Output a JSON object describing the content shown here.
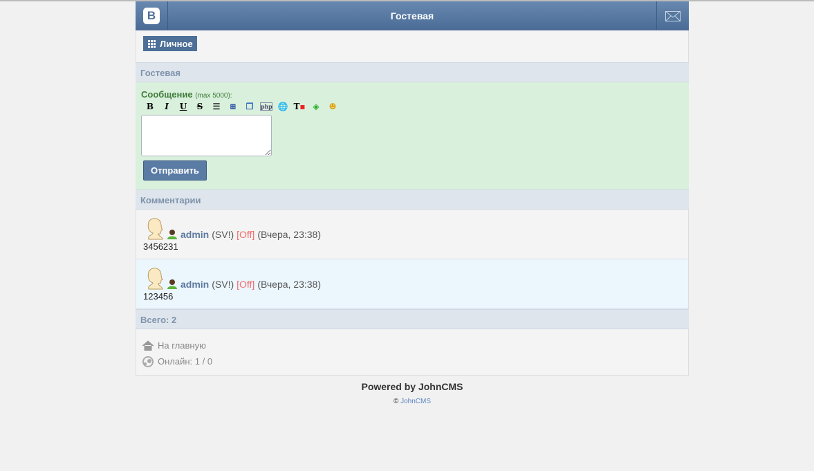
{
  "header": {
    "logo": "B",
    "title": "Гостевая"
  },
  "menu": {
    "personal": "Личное"
  },
  "guestbook": {
    "title": "Гостевая",
    "message_label": "Сообщение",
    "max_hint": "(max 5000):",
    "textarea_value": "",
    "submit": "Отправить",
    "toolbar": [
      "bold",
      "italic",
      "underline",
      "strike",
      "list",
      "spoiler",
      "copy",
      "php",
      "link",
      "text-color",
      "bg-color",
      "smileys"
    ]
  },
  "comments": {
    "title": "Комментарии",
    "items": [
      {
        "nick": "admin",
        "tag": "(SV!)",
        "status": "[Off]",
        "time": "(Вчера, 23:38)",
        "text": "3456231"
      },
      {
        "nick": "admin",
        "tag": "(SV!)",
        "status": "[Off]",
        "time": "(Вчера, 23:38)",
        "text": "123456"
      }
    ]
  },
  "total": "Всего: 2",
  "footer": {
    "home": "На главную",
    "online": "Онлайн: 1 / 0",
    "powered": "Powered by JohnCMS",
    "copy_sign": "©",
    "copy_link": "JohnCMS"
  }
}
